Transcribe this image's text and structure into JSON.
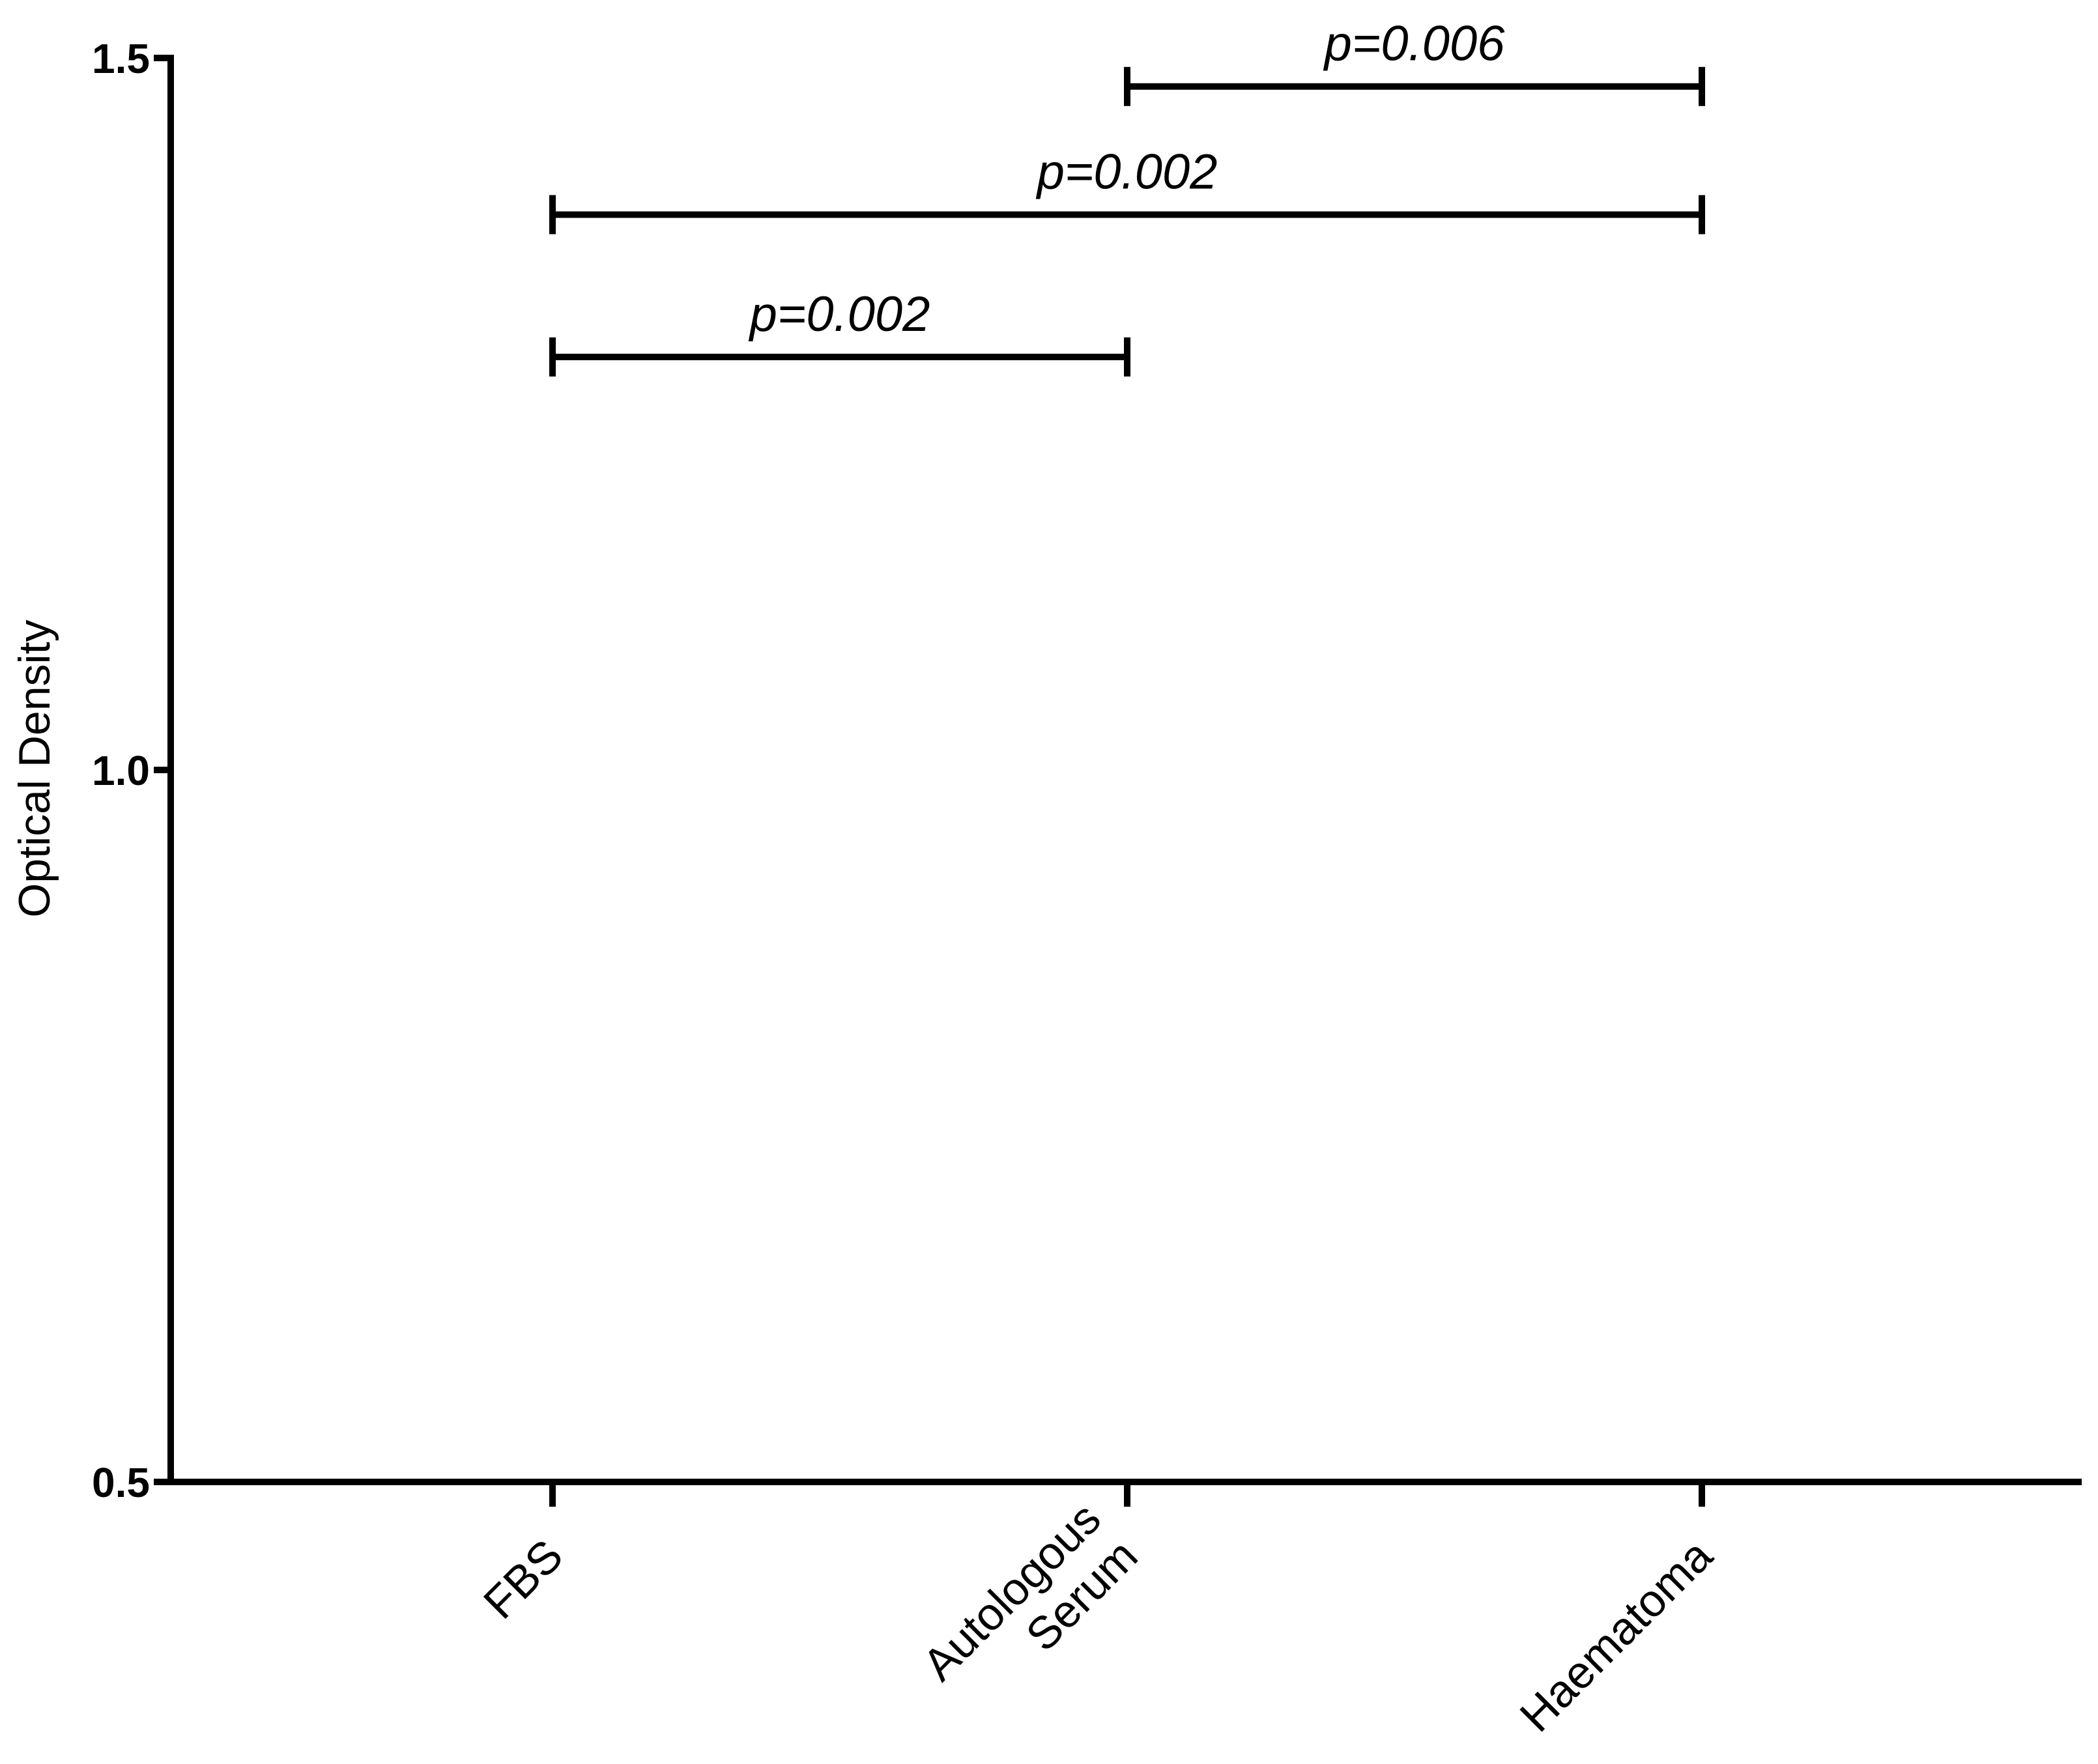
{
  "chart_data": {
    "type": "bar",
    "y_label": "Optical Density",
    "categories": [
      "FBS",
      "Autologous Serum",
      "Haematoma"
    ],
    "ylim": [
      0.5,
      1.5
    ],
    "yticks": [
      0.5,
      {
        "value": 1,
        "label": "1.0"
      },
      1.5
    ],
    "color": "#000000",
    "annotations": [
      {
        "from": "Autologous Serum",
        "to": "Haematoma",
        "y": 1.48,
        "label": "p=0.006"
      },
      {
        "from": "FBS",
        "to": "Haematoma",
        "y": 1.39,
        "label": "p=0.002"
      },
      {
        "from": "FBS",
        "to": "Autologous Serum",
        "y": 1.29,
        "label": "p=0.002"
      }
    ]
  }
}
